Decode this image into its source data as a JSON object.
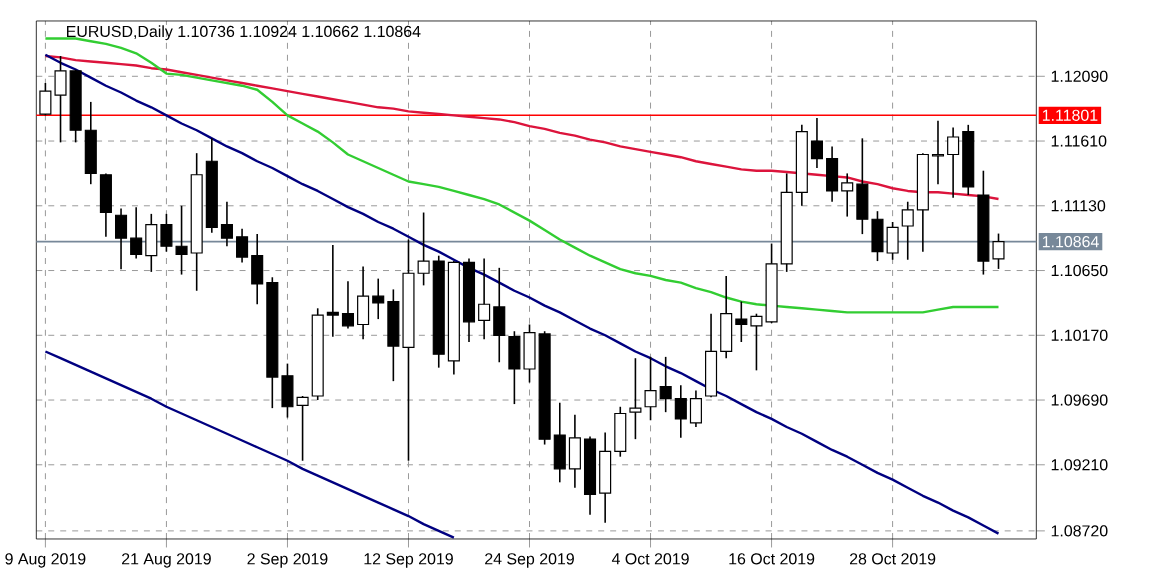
{
  "chart_data": {
    "type": "candlestick",
    "title": "EURUSD,Daily 1.10736 1.10924 1.10662 1.10864",
    "categories": [
      "9 Aug 2019",
      null,
      null,
      null,
      null,
      null,
      null,
      null,
      "21 Aug 2019",
      null,
      null,
      null,
      null,
      null,
      null,
      null,
      "2 Sep 2019",
      null,
      null,
      null,
      null,
      null,
      null,
      null,
      "12 Sep 2019",
      null,
      null,
      null,
      null,
      null,
      null,
      null,
      "24 Sep 2019",
      null,
      null,
      null,
      null,
      null,
      null,
      null,
      "4 Oct 2019",
      null,
      null,
      null,
      null,
      null,
      null,
      null,
      "16 Oct 2019",
      null,
      null,
      null,
      null,
      null,
      null,
      null,
      "28 Oct 2019",
      null,
      null,
      null,
      null,
      null,
      null,
      null
    ],
    "ohlc": [
      [
        1.1181,
        1.1204,
        1.118,
        1.1198
      ],
      [
        1.1195,
        1.1224,
        1.116,
        1.1213
      ],
      [
        1.1213,
        1.1214,
        1.116,
        1.1169
      ],
      [
        1.1169,
        1.119,
        1.1129,
        1.1137
      ],
      [
        1.1136,
        1.1137,
        1.109,
        1.1108
      ],
      [
        1.1106,
        1.1111,
        1.1066,
        1.1089
      ],
      [
        1.1089,
        1.1112,
        1.1074,
        1.1077
      ],
      [
        1.1076,
        1.1107,
        1.1064,
        1.1099
      ],
      [
        1.1099,
        1.1107,
        1.1079,
        1.1083
      ],
      [
        1.1083,
        1.1113,
        1.1062,
        1.1077
      ],
      [
        1.1078,
        1.1152,
        1.105,
        1.1136
      ],
      [
        1.1146,
        1.1163,
        1.1093,
        1.1097
      ],
      [
        1.1099,
        1.1116,
        1.1083,
        1.1089
      ],
      [
        1.109,
        1.1096,
        1.1071,
        1.1075
      ],
      [
        1.1076,
        1.1092,
        1.104,
        1.1055
      ],
      [
        1.1056,
        1.106,
        1.0963,
        1.0986
      ],
      [
        1.0987,
        1.0996,
        1.0956,
        1.0964
      ],
      [
        1.0965,
        1.0972,
        1.0924,
        1.0971
      ],
      [
        1.0972,
        1.1037,
        1.0969,
        1.1032
      ],
      [
        1.1034,
        1.1084,
        1.1016,
        1.1032
      ],
      [
        1.1033,
        1.1057,
        1.1022,
        1.1024
      ],
      [
        1.1025,
        1.1068,
        1.1014,
        1.1046
      ],
      [
        1.1046,
        1.1059,
        1.1029,
        1.1041
      ],
      [
        1.1042,
        1.1051,
        1.0983,
        1.1009
      ],
      [
        1.1008,
        1.1088,
        1.0924,
        1.1063
      ],
      [
        1.1063,
        1.1108,
        1.1054,
        1.1072
      ],
      [
        1.1072,
        1.1076,
        1.0993,
        1.1003
      ],
      [
        1.0998,
        1.1072,
        1.0988,
        1.1071
      ],
      [
        1.1071,
        1.1074,
        1.1012,
        1.1027
      ],
      [
        1.1028,
        1.1074,
        1.1014,
        1.104
      ],
      [
        1.1038,
        1.1067,
        1.0997,
        1.1017
      ],
      [
        1.1016,
        1.102,
        1.0966,
        1.0992
      ],
      [
        1.0992,
        1.1025,
        1.0982,
        1.1019
      ],
      [
        1.1018,
        1.102,
        1.0936,
        1.094
      ],
      [
        1.0943,
        1.0967,
        1.0908,
        1.0918
      ],
      [
        1.0918,
        1.0958,
        1.0904,
        1.0941
      ],
      [
        1.094,
        1.0942,
        1.0884,
        1.0899
      ],
      [
        1.09,
        1.0945,
        1.0878,
        1.0931
      ],
      [
        1.0931,
        1.0964,
        1.0927,
        1.0959
      ],
      [
        1.096,
        1.1,
        1.094,
        1.0963
      ],
      [
        1.0964,
        1.1001,
        1.0954,
        1.0976
      ],
      [
        1.0979,
        1.1001,
        1.096,
        1.097
      ],
      [
        1.097,
        1.098,
        1.0941,
        1.0955
      ],
      [
        1.0952,
        1.0976,
        1.0949,
        1.097
      ],
      [
        1.0972,
        1.1033,
        1.0971,
        1.1005
      ],
      [
        1.1005,
        1.1061,
        1.1,
        1.1033
      ],
      [
        1.1029,
        1.1042,
        1.1012,
        1.1025
      ],
      [
        1.1024,
        1.1033,
        1.0991,
        1.1031
      ],
      [
        1.1027,
        1.1085,
        1.1026,
        1.107
      ],
      [
        1.107,
        1.1137,
        1.1064,
        1.1123
      ],
      [
        1.1123,
        1.1173,
        1.1113,
        1.1168
      ],
      [
        1.1161,
        1.1178,
        1.1141,
        1.1148
      ],
      [
        1.1148,
        1.1157,
        1.1116,
        1.1124
      ],
      [
        1.1124,
        1.1137,
        1.1105,
        1.113
      ],
      [
        1.1129,
        1.1163,
        1.1092,
        1.1103
      ],
      [
        1.1103,
        1.1109,
        1.1072,
        1.1079
      ],
      [
        1.1078,
        1.1101,
        1.1073,
        1.1097
      ],
      [
        1.1098,
        1.1116,
        1.1073,
        1.111
      ],
      [
        1.111,
        1.1152,
        1.1079,
        1.1151
      ],
      [
        1.115,
        1.1176,
        1.1129,
        1.1151
      ],
      [
        1.1151,
        1.1171,
        1.1119,
        1.1164
      ],
      [
        1.1168,
        1.1173,
        1.1121,
        1.1127
      ],
      [
        1.1121,
        1.1139,
        1.1062,
        1.1072
      ],
      [
        1.10736,
        1.10924,
        1.10662,
        1.10864
      ]
    ],
    "series": [
      {
        "type": "line",
        "color": "#dc143c",
        "values": [
          1.1224,
          1.1223,
          1.1221,
          1.122,
          1.1219,
          1.1218,
          1.1217,
          1.1215,
          1.1214,
          1.1212,
          1.121,
          1.1208,
          1.1206,
          1.1204,
          1.1202,
          1.12,
          1.1198,
          1.1196,
          1.1194,
          1.1192,
          1.119,
          1.1188,
          1.1186,
          1.1185,
          1.1183,
          1.1182,
          1.1181,
          1.118,
          1.1179,
          1.1178,
          1.1177,
          1.1175,
          1.1172,
          1.117,
          1.1167,
          1.1165,
          1.1162,
          1.116,
          1.1157,
          1.1155,
          1.1153,
          1.1151,
          1.1149,
          1.1146,
          1.1144,
          1.1142,
          1.114,
          1.1139,
          1.1139,
          1.1138,
          1.1137,
          1.1136,
          1.1135,
          1.1134,
          1.1131,
          1.1129,
          1.1126,
          1.1124,
          1.1123,
          1.1123,
          1.1122,
          1.1121,
          1.112,
          1.1118
        ]
      },
      {
        "type": "line",
        "color": "#32cd32",
        "values": [
          1.1237,
          1.1237,
          1.1237,
          1.1235,
          1.1233,
          1.123,
          1.1226,
          1.1219,
          1.1211,
          1.121,
          1.1208,
          1.1206,
          1.1204,
          1.1202,
          1.1199,
          1.119,
          1.118,
          1.1174,
          1.1168,
          1.116,
          1.1151,
          1.1146,
          1.1141,
          1.1136,
          1.1131,
          1.1129,
          1.1127,
          1.1124,
          1.1121,
          1.1118,
          1.1114,
          1.1108,
          1.1102,
          1.1095,
          1.1088,
          1.1082,
          1.1076,
          1.1071,
          1.1066,
          1.1063,
          1.1061,
          1.1058,
          1.1056,
          1.1052,
          1.1049,
          1.1045,
          1.1042,
          1.104,
          1.1039,
          1.1038,
          1.1037,
          1.1036,
          1.1035,
          1.1034,
          1.1034,
          1.1034,
          1.1034,
          1.1034,
          1.1034,
          1.1036,
          1.1038,
          1.1038,
          1.1038,
          1.1038
        ]
      },
      {
        "type": "line",
        "color": "#000080",
        "values": [
          1.1225,
          1.1219,
          1.1214,
          1.1208,
          1.1202,
          1.1197,
          1.1191,
          1.1186,
          1.118,
          1.1174,
          1.1169,
          1.1163,
          1.1157,
          1.1152,
          1.1146,
          1.1141,
          1.1135,
          1.1129,
          1.1124,
          1.1118,
          1.1112,
          1.1107,
          1.1101,
          1.1096,
          1.109,
          1.1084,
          1.1079,
          1.1073,
          1.1067,
          1.1062,
          1.1056,
          1.105,
          1.1045,
          1.1039,
          1.1034,
          1.1028,
          1.1022,
          1.1017,
          1.1011,
          1.1005,
          1.1,
          1.0994,
          1.0989,
          1.0983,
          1.0977,
          1.0972,
          1.0966,
          1.096,
          1.0955,
          1.0949,
          1.0944,
          1.0938,
          1.0932,
          1.0927,
          1.0921,
          1.0915,
          1.091,
          1.0904,
          1.0898,
          1.0893,
          1.0887,
          1.0882,
          1.0876,
          1.087
        ]
      },
      {
        "type": "line",
        "color": "#000080",
        "values": [
          1.1005,
          1.1,
          1.0995,
          1.099,
          1.0985,
          1.098,
          1.0975,
          1.097,
          1.0964,
          1.0959,
          1.0954,
          1.0949,
          1.0944,
          1.0939,
          1.0934,
          1.0929,
          1.0924,
          1.0918,
          1.0913,
          1.0908,
          1.0903,
          1.0898,
          1.0893,
          1.0888,
          1.0883,
          1.0877,
          1.0872,
          1.0867,
          null,
          null,
          null,
          null,
          null,
          null,
          null,
          null,
          null,
          null,
          null,
          null,
          null,
          null,
          null,
          null,
          null,
          null,
          null,
          null,
          null,
          null,
          null,
          null,
          null,
          null,
          null,
          null,
          null,
          null,
          null,
          null,
          null,
          null,
          null,
          null
        ]
      }
    ],
    "ylim": [
      1.0866,
      1.125
    ],
    "yticks": [
      {
        "value": 1.0872,
        "label": "1.08720"
      },
      {
        "value": 1.0921,
        "label": "1.09210"
      },
      {
        "value": 1.0969,
        "label": "1.09690"
      },
      {
        "value": 1.1017,
        "label": "1.10170"
      },
      {
        "value": 1.1065,
        "label": "1.10650"
      },
      {
        "value": 1.1113,
        "label": "1.11130"
      },
      {
        "value": 1.1161,
        "label": "1.11610"
      },
      {
        "value": 1.1209,
        "label": "1.12090"
      }
    ],
    "ref_lines": [
      {
        "axis": "y",
        "value": 1.11801,
        "label": "1.11801",
        "color": "#ff0000"
      },
      {
        "axis": "y",
        "value": 1.10864,
        "label": "1.10864",
        "color": "#778899"
      }
    ],
    "grid": true
  }
}
